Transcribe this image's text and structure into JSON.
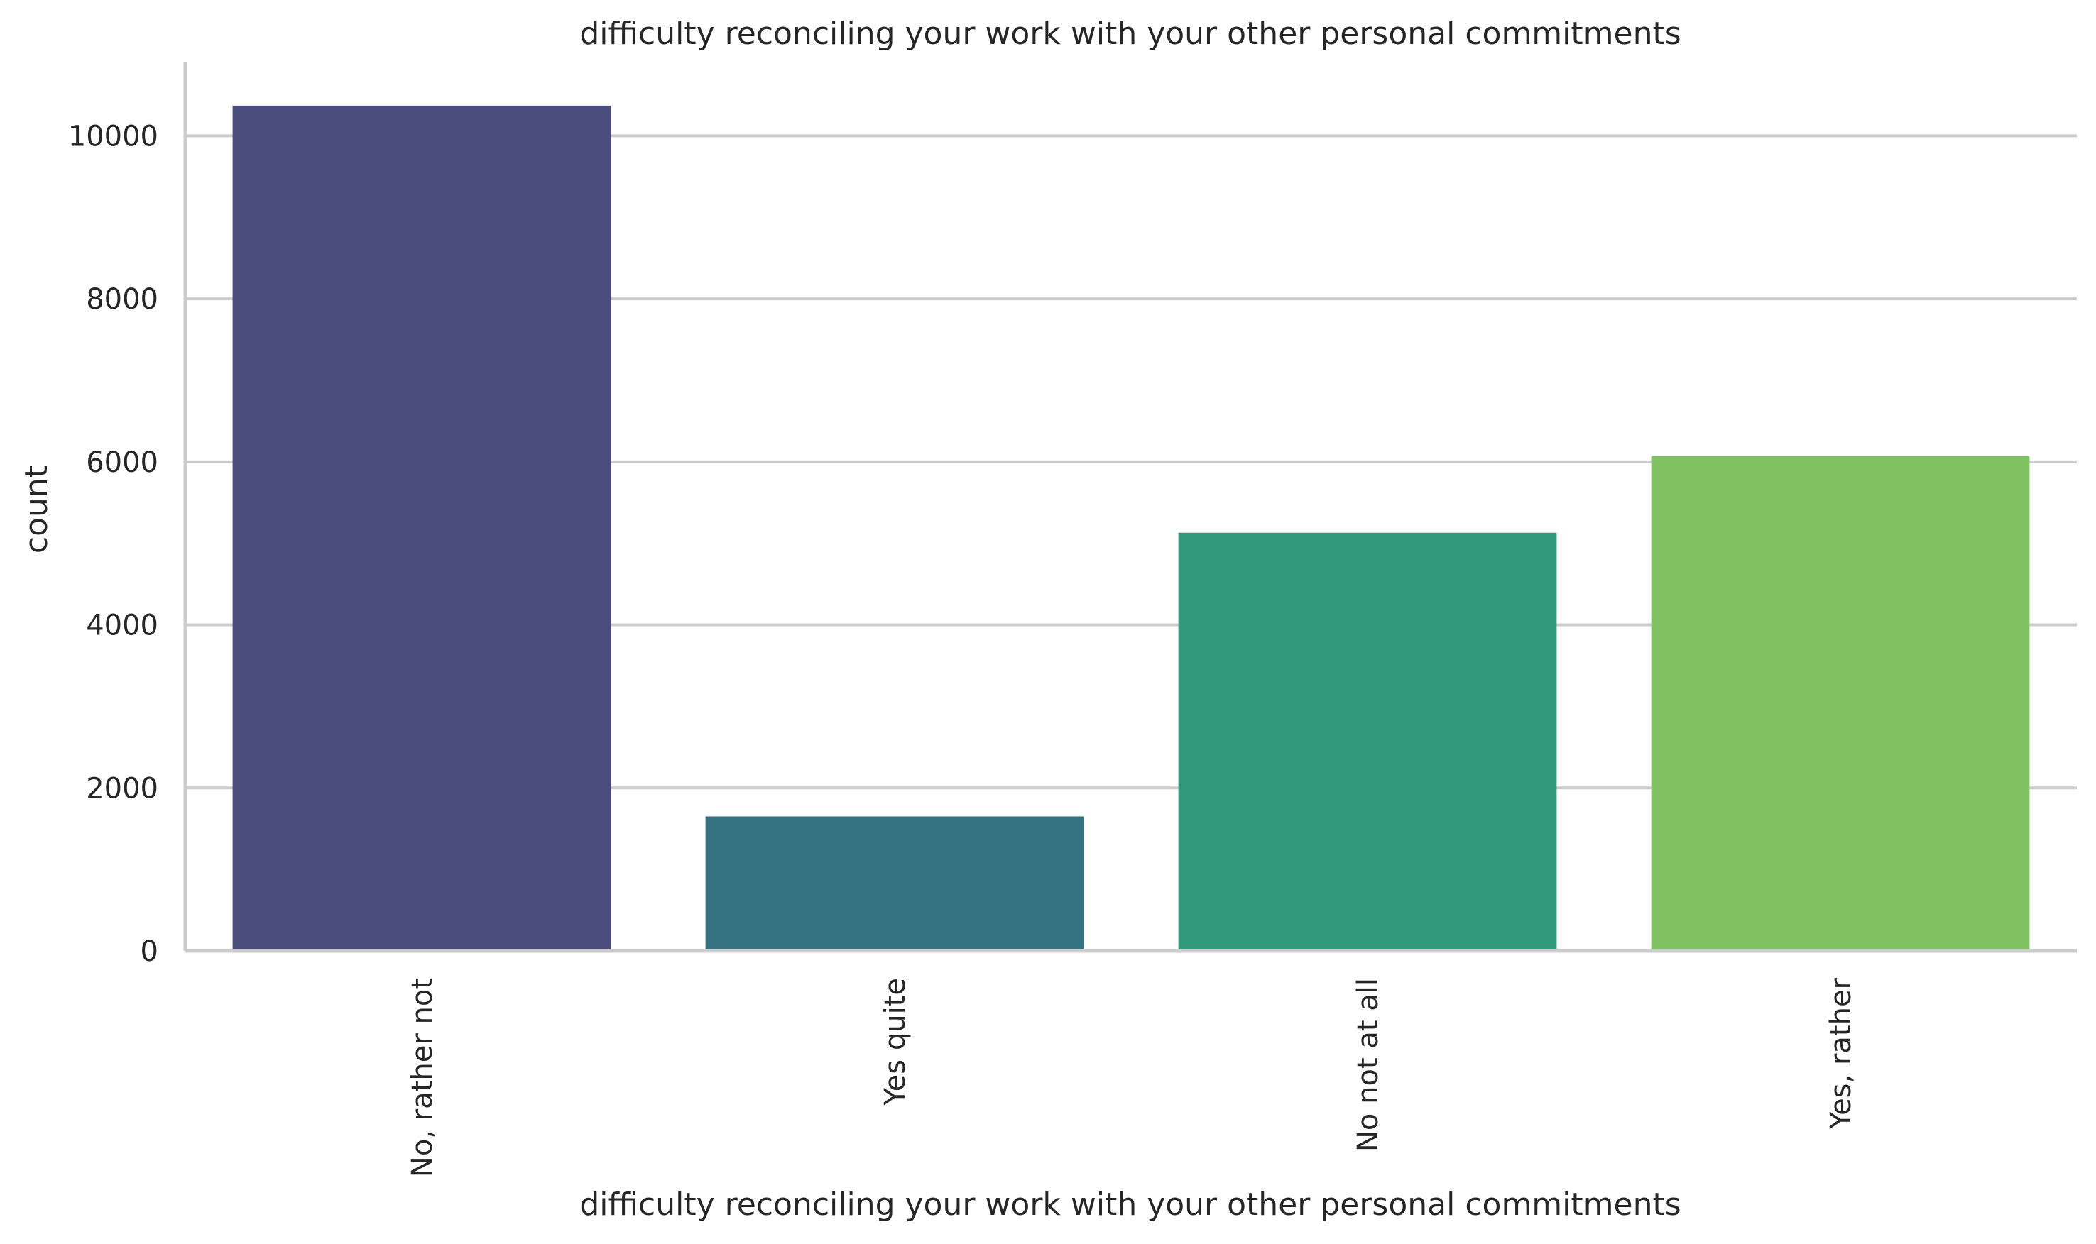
{
  "chart_data": {
    "type": "bar",
    "title": "difficulty reconciling your work with your other personal commitments",
    "xlabel": "difficulty reconciling your work with your other personal commitments",
    "ylabel": "count",
    "categories": [
      "No, rather not",
      "Yes quite",
      "No not at all",
      "Yes, rather"
    ],
    "values": [
      10370,
      1650,
      5130,
      6070
    ],
    "colors": [
      "#4a4c7b",
      "#357282",
      "#34987c",
      "#80c262"
    ],
    "ylim": [
      0,
      10900
    ],
    "yticks": [
      0,
      2000,
      4000,
      6000,
      8000,
      10000
    ],
    "ytick_labels": [
      "0",
      "2000",
      "4000",
      "6000",
      "8000",
      "10000"
    ],
    "grid": "horizontal",
    "legend": "none",
    "style": {
      "grid_color": "#cccccc",
      "spine_color": "#cccccc",
      "text_color": "#262626",
      "background": "#ffffff"
    }
  }
}
